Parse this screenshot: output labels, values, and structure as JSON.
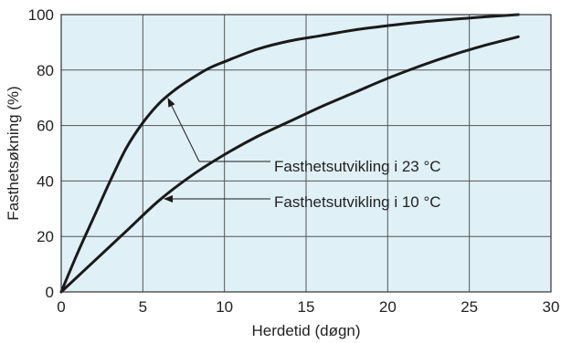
{
  "chart_data": {
    "type": "line",
    "xlabel": "Herdetid (døgn)",
    "ylabel": "Fasthetsøkning (%)",
    "xlim": [
      0,
      30
    ],
    "ylim": [
      0,
      100
    ],
    "xticks": [
      "0",
      "5",
      "10",
      "15",
      "20",
      "25",
      "30"
    ],
    "yticks": [
      "0",
      "20",
      "40",
      "60",
      "80",
      "100"
    ],
    "grid": true,
    "background": "#dff0f7",
    "line_color": "#1a1a1a",
    "series": [
      {
        "name": "Fasthetsutvikling i 23 °C",
        "x": [
          0,
          1,
          2,
          3,
          4,
          5,
          6,
          7,
          8,
          9,
          10,
          12,
          14,
          16,
          18,
          20,
          22,
          24,
          26,
          28
        ],
        "y": [
          0,
          14,
          27,
          40,
          52,
          61,
          68,
          73,
          77,
          80.5,
          83,
          87.5,
          90.5,
          92.5,
          94.5,
          96,
          97.3,
          98.3,
          99.2,
          100
        ]
      },
      {
        "name": "Fasthetsutvikling i 10 °C",
        "x": [
          0,
          2,
          4,
          6,
          8,
          10,
          12,
          14,
          16,
          18,
          20,
          22,
          24,
          26,
          28
        ],
        "y": [
          0,
          11,
          22,
          33,
          42,
          49.5,
          56,
          61.5,
          67,
          72,
          77,
          81.5,
          85.5,
          89,
          92
        ]
      }
    ],
    "annotations": [
      {
        "text": "Fasthetsutvikling i 23 °C",
        "points_to_series": 0
      },
      {
        "text": "Fasthetsutvikling i 10 °C",
        "points_to_series": 1
      }
    ]
  }
}
